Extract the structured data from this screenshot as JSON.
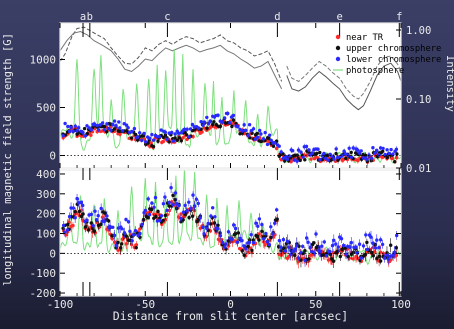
{
  "chart_data": [
    {
      "type": "scatter",
      "panel": "top",
      "ylabel_left": "longitudinal magnetic field strength [G]",
      "ylabel_right": "Intensity",
      "ylim": [
        -130,
        1380
      ],
      "xlim": [
        -100,
        100
      ],
      "yticks": [
        0,
        500,
        1000
      ],
      "yticks_right": [
        "1.00",
        "0.10",
        "0.01"
      ],
      "top_markers": [
        {
          "label": "a",
          "x": -86.5
        },
        {
          "label": "b",
          "x": -82.5
        },
        {
          "label": "c",
          "x": -37
        },
        {
          "label": "d",
          "x": 27.5
        },
        {
          "label": "e",
          "x": 64
        },
        {
          "label": "f",
          "x": 99
        }
      ],
      "legend_position": "top-right",
      "series": [
        {
          "name": "near TR",
          "color": "#ff2a2a"
        },
        {
          "name": "upper chromosphere",
          "color": "#111111"
        },
        {
          "name": "lower chromosphere",
          "color": "#2a2aff"
        },
        {
          "name": "photosphere",
          "color": "#7ee07e"
        }
      ]
    },
    {
      "type": "scatter",
      "panel": "bottom",
      "ylim": [
        -215,
        420
      ],
      "xlim": [
        -100,
        100
      ],
      "yticks": [
        -200,
        -100,
        0,
        100,
        200,
        300,
        400
      ],
      "xticks": [
        -100,
        -50,
        0,
        50,
        100
      ],
      "xlabel": "Distance from slit center [arcsec]"
    }
  ]
}
